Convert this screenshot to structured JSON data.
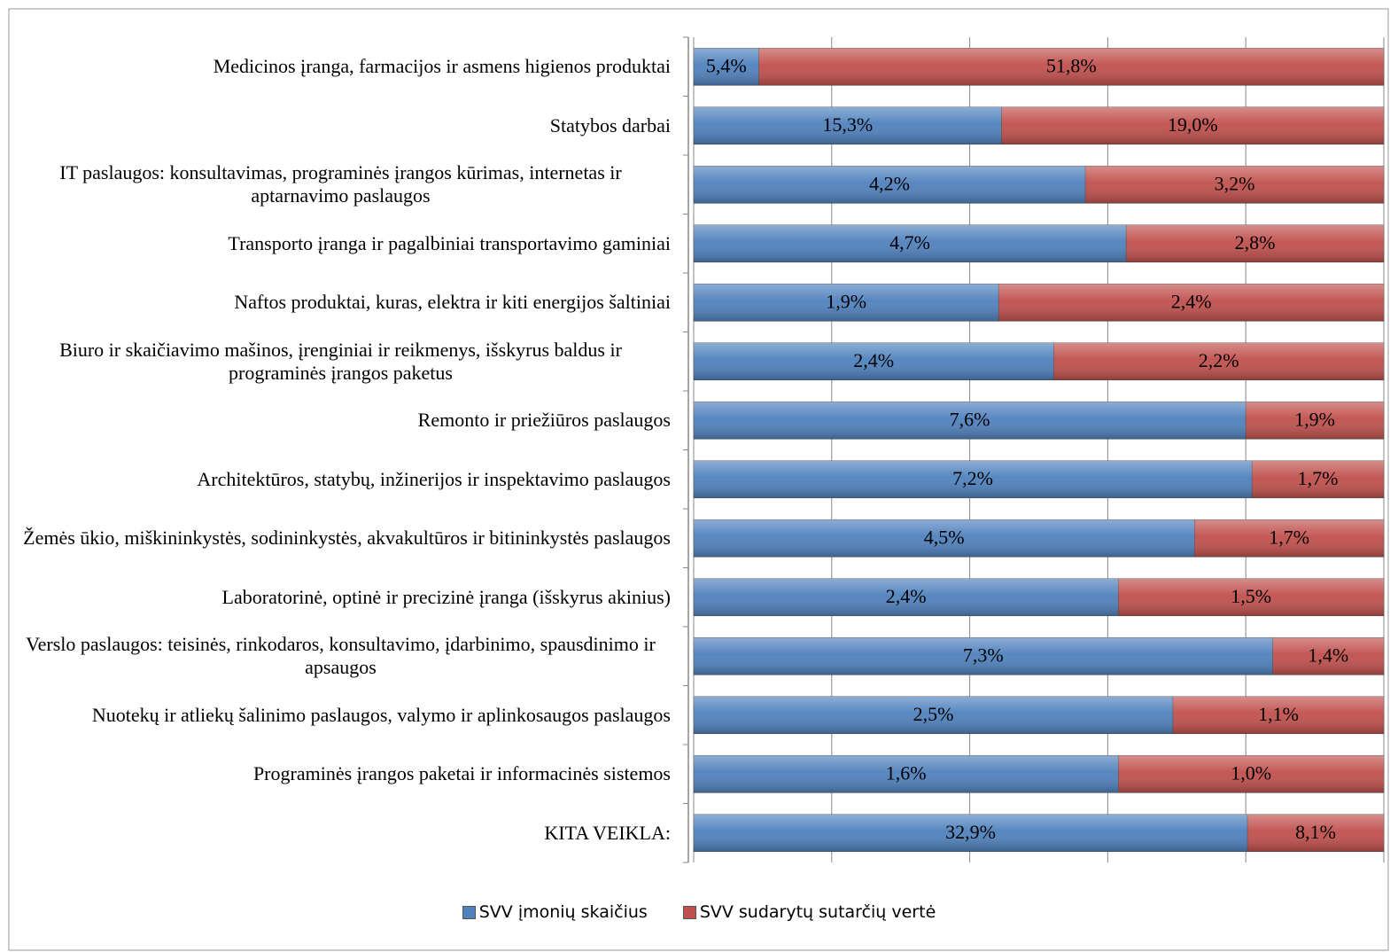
{
  "chart_data": {
    "type": "bar",
    "orientation": "horizontal",
    "stacked": "percent",
    "categories": [
      "Medicinos įranga, farmacijos ir asmens higienos produktai",
      "Statybos darbai",
      "IT paslaugos: konsultavimas, programinės įrangos kūrimas, internetas ir aptarnavimo paslaugos",
      "Transporto įranga ir pagalbiniai transportavimo gaminiai",
      "Naftos produktai, kuras, elektra ir kiti energijos šaltiniai",
      "Biuro ir skaičiavimo mašinos, įrenginiai ir reikmenys, išskyrus baldus ir programinės įrangos paketus",
      "Remonto ir priežiūros paslaugos",
      "Architektūros, statybų, inžinerijos ir inspektavimo paslaugos",
      "Žemės ūkio, miškininkystės, sodininkystės, akvakultūros ir bitininkystės paslaugos",
      "Laboratorinė, optinė ir precizinė įranga (išskyrus akinius)",
      "Verslo paslaugos: teisinės, rinkodaros, konsultavimo, įdarbinimo, spausdinimo ir apsaugos",
      "Nuotekų ir atliekų šalinimo paslaugos, valymo ir aplinkosaugos paslaugos",
      "Programinės įrangos paketai ir informacinės sistemos",
      "KITA VEIKLA:"
    ],
    "series": [
      {
        "name": "SVV įmonių skaičius",
        "color": "#4f81bd",
        "values": [
          5.4,
          15.3,
          4.2,
          4.7,
          1.9,
          2.4,
          7.6,
          7.2,
          4.5,
          2.4,
          7.3,
          2.5,
          1.6,
          32.9
        ],
        "value_labels": [
          "5,4%",
          "15,3%",
          "4,2%",
          "4,7%",
          "1,9%",
          "2,4%",
          "7,6%",
          "7,2%",
          "4,5%",
          "2,4%",
          "7,3%",
          "2,5%",
          "1,6%",
          "32,9%"
        ]
      },
      {
        "name": "SVV sudarytų sutarčių vertė",
        "color": "#c0504d",
        "values": [
          51.8,
          19.0,
          3.2,
          2.8,
          2.4,
          2.2,
          1.9,
          1.7,
          1.7,
          1.5,
          1.4,
          1.1,
          1.0,
          8.1
        ],
        "value_labels": [
          "51,8%",
          "19,0%",
          "3,2%",
          "2,8%",
          "2,4%",
          "2,2%",
          "1,9%",
          "1,7%",
          "1,7%",
          "1,5%",
          "1,4%",
          "1,1%",
          "1,0%",
          "8,1%"
        ]
      }
    ],
    "xlim": [
      0,
      100
    ],
    "xticks": [
      0,
      20,
      40,
      60,
      80,
      100
    ],
    "grid": true,
    "legend": "bottom"
  }
}
